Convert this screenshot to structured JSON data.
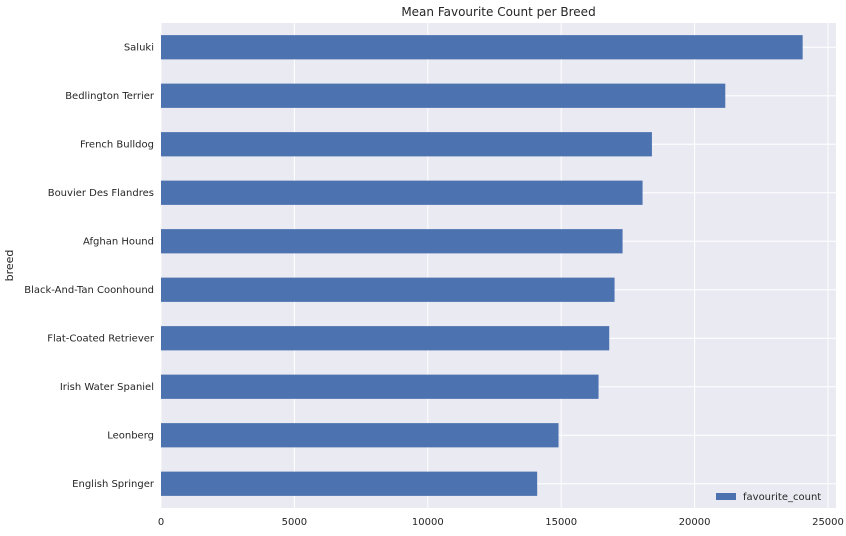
{
  "chart_data": {
    "type": "bar",
    "orientation": "horizontal",
    "title": "Mean Favourite Count per Breed",
    "xlabel": "",
    "ylabel": "breed",
    "categories": [
      "English Springer",
      "Leonberg",
      "Irish Water Spaniel",
      "Flat-Coated Retriever",
      "Black-And-Tan Coonhound",
      "Afghan Hound",
      "Bouvier Des Flandres",
      "French Bulldog",
      "Bedlington Terrier",
      "Saluki"
    ],
    "series": [
      {
        "name": "favourite_count",
        "color": "#4c72b0",
        "values": [
          14100,
          14900,
          16400,
          16800,
          17000,
          17300,
          18050,
          18400,
          21150,
          24050
        ]
      }
    ],
    "xlim": [
      0,
      25300
    ],
    "xticks": [
      0,
      5000,
      10000,
      15000,
      20000,
      25000
    ],
    "xtick_labels": [
      "0",
      "5000",
      "10000",
      "15000",
      "20000",
      "25000"
    ],
    "grid": true,
    "legend_position": "lower-right",
    "background_color": "#eaeaf2",
    "grid_color": "#ffffff"
  }
}
